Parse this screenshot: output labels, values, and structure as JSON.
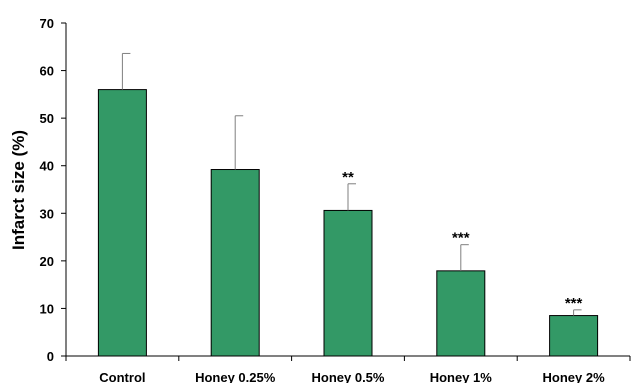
{
  "chart_data": {
    "type": "bar",
    "categories": [
      "Control",
      "Honey 0.25%",
      "Honey 0.5%",
      "Honey 1%",
      "Honey 2%"
    ],
    "values": [
      56,
      39.2,
      30.6,
      17.9,
      8.5
    ],
    "error": [
      7.6,
      11.3,
      5.6,
      5.5,
      1.2
    ],
    "significance": [
      "",
      "",
      "**",
      "***",
      "***"
    ],
    "xlabel": "",
    "ylabel": "Infarct size (%)",
    "ylim": [
      0,
      70
    ],
    "yticks": [
      0,
      10,
      20,
      30,
      40,
      50,
      60,
      70
    ],
    "grid": false,
    "bar_color": "#339966",
    "error_color": "#7f7f7f"
  }
}
